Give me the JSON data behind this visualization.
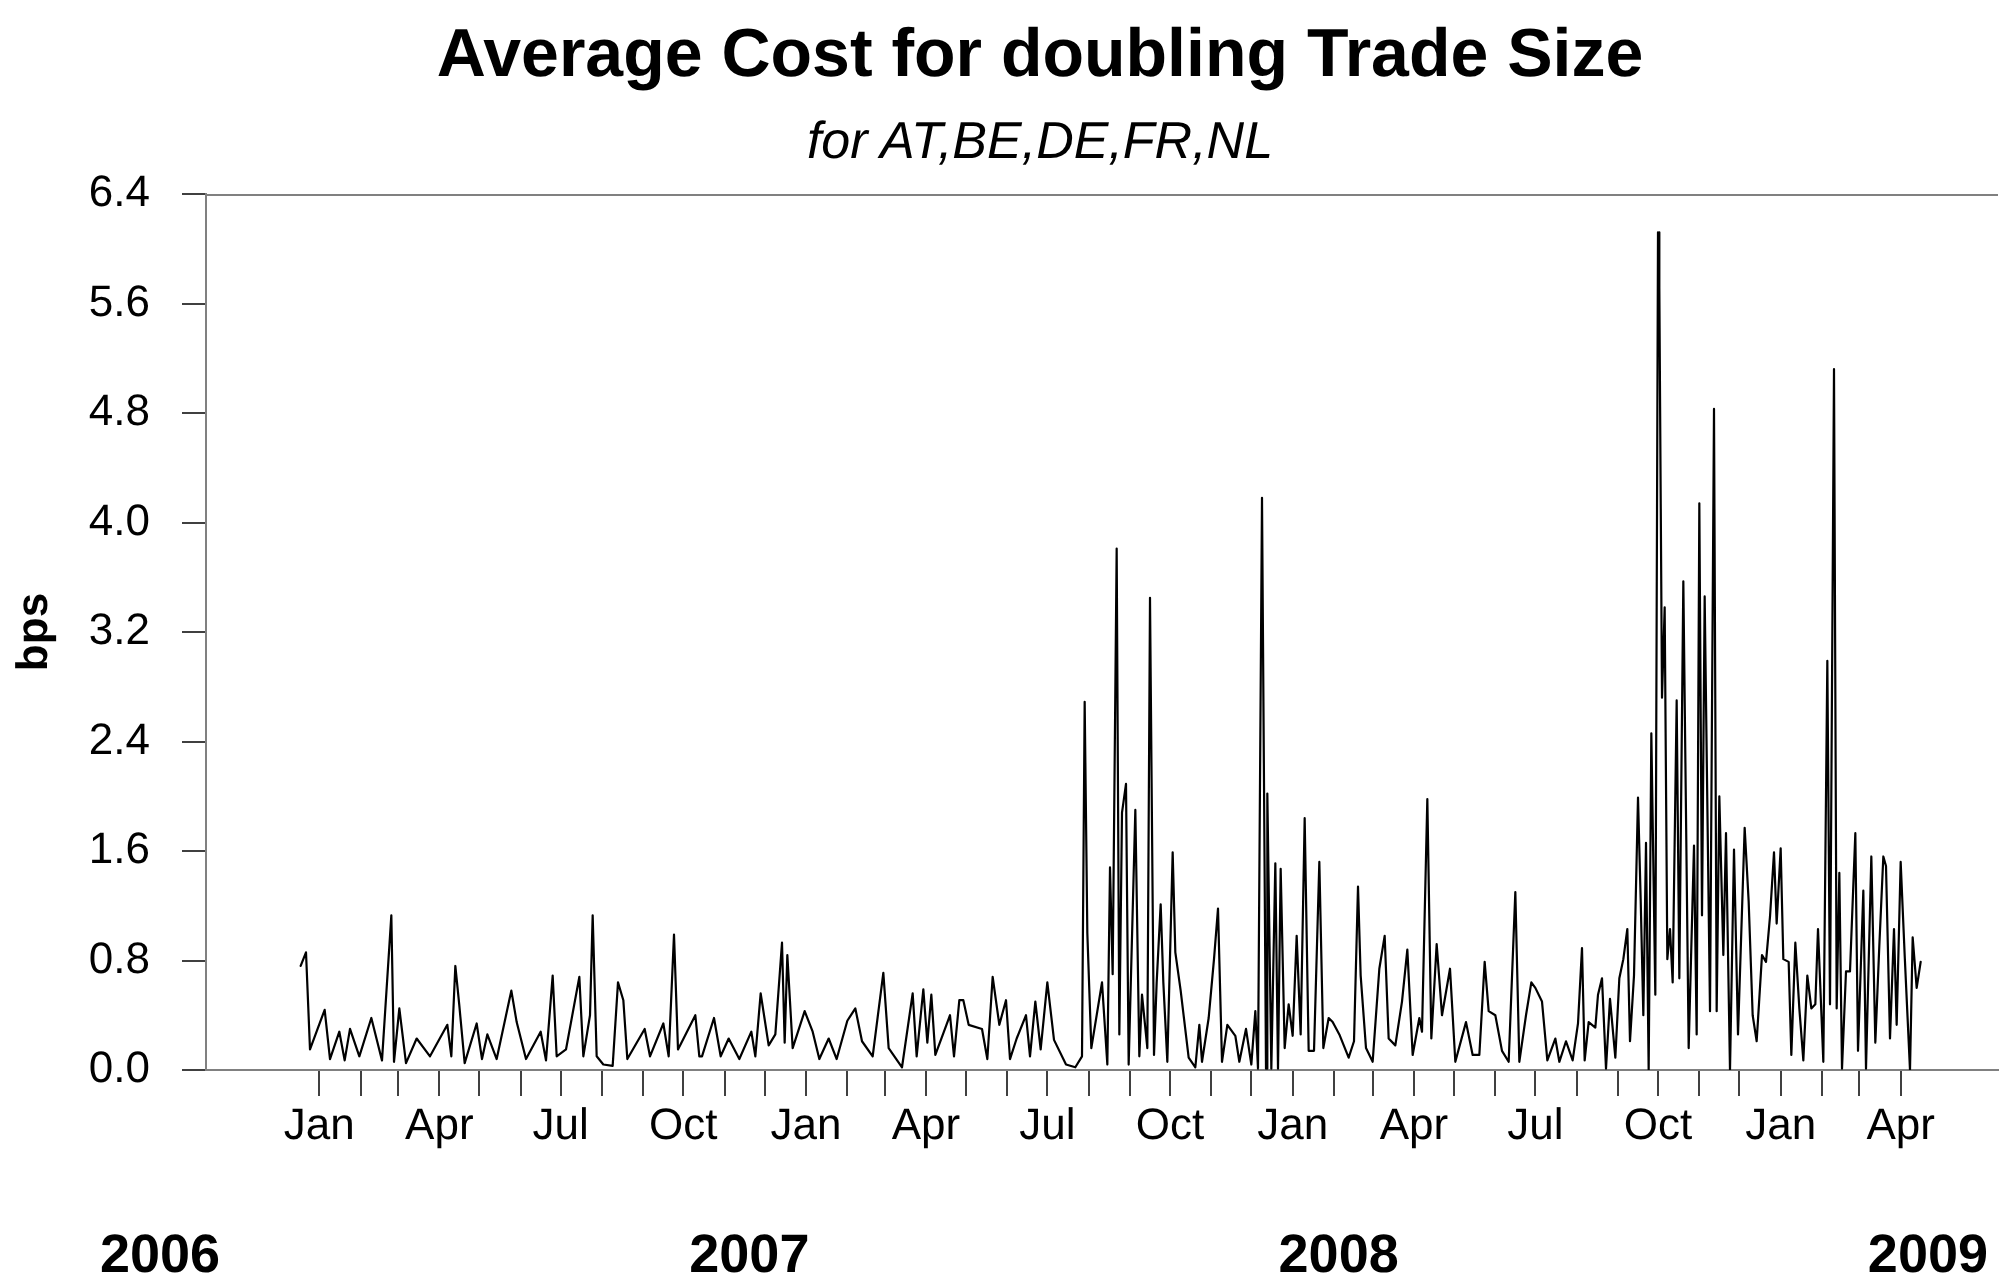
{
  "chart_data": {
    "type": "line",
    "title": "Average Cost for doubling Trade Size",
    "subtitle": "for AT,BE,DE,FR,NL",
    "ylabel": "bps",
    "annotations": [
      "2006",
      "2007",
      "2008",
      "2009"
    ],
    "color": "#000000",
    "x": [
      "2005-12-18",
      "2005-12-22",
      "2005-12-25",
      "2006-01-05",
      "2006-01-09",
      "2006-01-16",
      "2006-01-20",
      "2006-01-24",
      "2006-01-31",
      "2006-02-09",
      "2006-02-17",
      "2006-02-24",
      "2006-02-26",
      "2006-03-02",
      "2006-03-07",
      "2006-03-15",
      "2006-03-25",
      "2006-04-07",
      "2006-04-10",
      "2006-04-13",
      "2006-04-16",
      "2006-04-20",
      "2006-04-29",
      "2006-05-03",
      "2006-05-07",
      "2006-05-14",
      "2006-05-25",
      "2006-05-29",
      "2006-06-05",
      "2006-06-16",
      "2006-06-20",
      "2006-06-25",
      "2006-06-28",
      "2006-07-05",
      "2006-07-15",
      "2006-07-18",
      "2006-07-23",
      "2006-07-25",
      "2006-07-28",
      "2006-08-02",
      "2006-08-09",
      "2006-08-13",
      "2006-08-17",
      "2006-08-20",
      "2006-09-02",
      "2006-09-06",
      "2006-09-16",
      "2006-09-20",
      "2006-09-24",
      "2006-09-27",
      "2006-10-10",
      "2006-10-13",
      "2006-10-15",
      "2006-10-24",
      "2006-10-29",
      "2006-11-04",
      "2006-11-12",
      "2006-11-21",
      "2006-11-24",
      "2006-11-28",
      "2006-12-04",
      "2006-12-09",
      "2006-12-14",
      "2006-12-16",
      "2006-12-18",
      "2006-12-22",
      "2006-12-31",
      "2007-01-06",
      "2007-01-11",
      "2007-01-18",
      "2007-01-24",
      "2007-02-01",
      "2007-02-07",
      "2007-02-12",
      "2007-02-20",
      "2007-02-28",
      "2007-03-04",
      "2007-03-14",
      "2007-03-22",
      "2007-03-25",
      "2007-03-30",
      "2007-04-02",
      "2007-04-05",
      "2007-04-08",
      "2007-04-19",
      "2007-04-22",
      "2007-04-26",
      "2007-04-29",
      "2007-05-03",
      "2007-05-13",
      "2007-05-17",
      "2007-05-21",
      "2007-05-26",
      "2007-05-31",
      "2007-06-03",
      "2007-06-08",
      "2007-06-15",
      "2007-06-18",
      "2007-06-22",
      "2007-06-26",
      "2007-07-01",
      "2007-07-06",
      "2007-07-15",
      "2007-07-22",
      "2007-07-27",
      "2007-07-29",
      "2007-07-31",
      "2007-08-03",
      "2007-08-11",
      "2007-08-15",
      "2007-08-17",
      "2007-08-19",
      "2007-08-22",
      "2007-08-24",
      "2007-08-26",
      "2007-08-29",
      "2007-08-31",
      "2007-09-05",
      "2007-09-08",
      "2007-09-10",
      "2007-09-14",
      "2007-09-16",
      "2007-09-19",
      "2007-09-21",
      "2007-09-24",
      "2007-09-26",
      "2007-09-29",
      "2007-10-03",
      "2007-10-05",
      "2007-10-09",
      "2007-10-15",
      "2007-10-20",
      "2007-10-23",
      "2007-10-25",
      "2007-10-30",
      "2007-11-03",
      "2007-11-06",
      "2007-11-09",
      "2007-11-13",
      "2007-11-19",
      "2007-11-22",
      "2007-11-27",
      "2007-12-01",
      "2007-12-04",
      "2007-12-06",
      "2007-12-09",
      "2007-12-12",
      "2007-12-13",
      "2007-12-16",
      "2007-12-19",
      "2007-12-21",
      "2007-12-23",
      "2007-12-26",
      "2007-12-29",
      "2008-01-01",
      "2008-01-04",
      "2008-01-07",
      "2008-01-10",
      "2008-01-13",
      "2008-01-17",
      "2008-01-21",
      "2008-01-24",
      "2008-01-28",
      "2008-01-31",
      "2008-02-05",
      "2008-02-12",
      "2008-02-16",
      "2008-02-19",
      "2008-02-21",
      "2008-02-25",
      "2008-03-01",
      "2008-03-06",
      "2008-03-10",
      "2008-03-13",
      "2008-03-18",
      "2008-03-23",
      "2008-03-27",
      "2008-03-31",
      "2008-04-05",
      "2008-04-07",
      "2008-04-11",
      "2008-04-14",
      "2008-04-18",
      "2008-04-22",
      "2008-04-28",
      "2008-05-02",
      "2008-05-10",
      "2008-05-15",
      "2008-05-20",
      "2008-05-24",
      "2008-05-27",
      "2008-06-01",
      "2008-06-06",
      "2008-06-11",
      "2008-06-16",
      "2008-06-19",
      "2008-06-24",
      "2008-06-28",
      "2008-07-01",
      "2008-07-06",
      "2008-07-10",
      "2008-07-16",
      "2008-07-19",
      "2008-07-24",
      "2008-07-29",
      "2008-08-02",
      "2008-08-05",
      "2008-08-07",
      "2008-08-10",
      "2008-08-15",
      "2008-08-17",
      "2008-08-20",
      "2008-08-23",
      "2008-08-26",
      "2008-08-30",
      "2008-09-02",
      "2008-09-05",
      "2008-09-08",
      "2008-09-10",
      "2008-09-13",
      "2008-09-16",
      "2008-09-18",
      "2008-09-20",
      "2008-09-22",
      "2008-09-24",
      "2008-09-26",
      "2008-09-29",
      "2008-10-01",
      "2008-10-02",
      "2008-10-04",
      "2008-10-06",
      "2008-10-08",
      "2008-10-10",
      "2008-10-12",
      "2008-10-15",
      "2008-10-17",
      "2008-10-20",
      "2008-10-24",
      "2008-10-28",
      "2008-10-30",
      "2008-11-01",
      "2008-11-03",
      "2008-11-05",
      "2008-11-09",
      "2008-11-12",
      "2008-11-14",
      "2008-11-16",
      "2008-11-19",
      "2008-11-21",
      "2008-11-24",
      "2008-11-27",
      "2008-11-30",
      "2008-12-05",
      "2008-12-08",
      "2008-12-11",
      "2008-12-14",
      "2008-12-18",
      "2008-12-21",
      "2008-12-24",
      "2008-12-27",
      "2008-12-29",
      "2009-01-01",
      "2009-01-03",
      "2009-01-07",
      "2009-01-09",
      "2009-01-12",
      "2009-01-15",
      "2009-01-18",
      "2009-01-21",
      "2009-01-24",
      "2009-01-27",
      "2009-01-29",
      "2009-02-02",
      "2009-02-05",
      "2009-02-07",
      "2009-02-10",
      "2009-02-12",
      "2009-02-14",
      "2009-02-16",
      "2009-02-19",
      "2009-02-22",
      "2009-02-26",
      "2009-02-28",
      "2009-03-04",
      "2009-03-06",
      "2009-03-10",
      "2009-03-13",
      "2009-03-16",
      "2009-03-19",
      "2009-03-21",
      "2009-03-24",
      "2009-03-27",
      "2009-03-29",
      "2009-04-01",
      "2009-04-04",
      "2009-04-08",
      "2009-04-10",
      "2009-04-13",
      "2009-04-16"
    ],
    "values": [
      0.76,
      0.86,
      0.15,
      0.44,
      0.08,
      0.28,
      0.07,
      0.3,
      0.1,
      0.38,
      0.07,
      1.13,
      0.06,
      0.45,
      0.05,
      0.23,
      0.1,
      0.33,
      0.1,
      0.76,
      0.47,
      0.05,
      0.34,
      0.08,
      0.26,
      0.08,
      0.58,
      0.35,
      0.08,
      0.28,
      0.07,
      0.69,
      0.1,
      0.15,
      0.68,
      0.1,
      0.4,
      1.13,
      0.1,
      0.04,
      0.03,
      0.64,
      0.51,
      0.08,
      0.3,
      0.1,
      0.34,
      0.1,
      0.99,
      0.15,
      0.4,
      0.1,
      0.1,
      0.38,
      0.1,
      0.23,
      0.08,
      0.28,
      0.1,
      0.56,
      0.18,
      0.26,
      0.93,
      0.2,
      0.84,
      0.16,
      0.43,
      0.28,
      0.08,
      0.23,
      0.08,
      0.36,
      0.45,
      0.21,
      0.1,
      0.71,
      0.16,
      0.02,
      0.56,
      0.1,
      0.59,
      0.2,
      0.55,
      0.11,
      0.4,
      0.1,
      0.51,
      0.51,
      0.33,
      0.3,
      0.08,
      0.68,
      0.33,
      0.51,
      0.08,
      0.23,
      0.4,
      0.1,
      0.5,
      0.15,
      0.64,
      0.22,
      0.04,
      0.02,
      0.1,
      2.69,
      1.0,
      0.16,
      0.64,
      0.04,
      1.48,
      0.7,
      3.81,
      0.26,
      1.88,
      2.09,
      0.04,
      1.9,
      0.1,
      0.55,
      0.16,
      3.45,
      0.11,
      0.64,
      1.21,
      0.64,
      0.06,
      1.59,
      0.86,
      0.58,
      0.09,
      0.02,
      0.33,
      0.06,
      0.38,
      0.81,
      1.18,
      0.06,
      0.33,
      0.25,
      0.06,
      0.3,
      0.04,
      0.43,
      0.01,
      4.18,
      0.01,
      2.02,
      0.01,
      1.51,
      0.01,
      1.47,
      0.16,
      0.48,
      0.25,
      0.98,
      0.26,
      1.84,
      0.14,
      0.14,
      1.52,
      0.16,
      0.38,
      0.35,
      0.26,
      0.09,
      0.21,
      1.34,
      0.69,
      0.16,
      0.06,
      0.74,
      0.98,
      0.23,
      0.18,
      0.5,
      0.88,
      0.11,
      0.38,
      0.28,
      1.98,
      0.23,
      0.92,
      0.4,
      0.74,
      0.06,
      0.35,
      0.11,
      0.11,
      0.79,
      0.43,
      0.4,
      0.14,
      0.06,
      1.3,
      0.06,
      0.4,
      0.64,
      0.6,
      0.5,
      0.07,
      0.23,
      0.06,
      0.21,
      0.07,
      0.34,
      0.89,
      0.07,
      0.35,
      0.31,
      0.55,
      0.67,
      0.01,
      0.52,
      0.09,
      0.67,
      0.81,
      1.03,
      0.21,
      0.69,
      1.99,
      1.25,
      0.4,
      1.66,
      0.0,
      2.46,
      0.55,
      6.12,
      5.72,
      2.72,
      3.38,
      0.81,
      1.03,
      0.64,
      2.7,
      0.67,
      3.57,
      0.16,
      1.64,
      0.26,
      4.14,
      1.13,
      3.46,
      0.43,
      4.83,
      0.43,
      2.0,
      0.84,
      1.73,
      0.0,
      1.61,
      0.26,
      1.77,
      1.23,
      0.4,
      0.21,
      0.84,
      0.79,
      1.12,
      1.59,
      1.07,
      1.62,
      0.81,
      0.79,
      0.11,
      0.93,
      0.45,
      0.07,
      0.69,
      0.45,
      0.48,
      1.03,
      0.06,
      2.99,
      0.48,
      5.12,
      0.45,
      1.44,
      0.01,
      0.72,
      0.72,
      1.73,
      0.14,
      1.31,
      0.01,
      1.56,
      0.2,
      0.91,
      1.56,
      1.49,
      0.23,
      1.03,
      0.33,
      1.52,
      0.84,
      0.0,
      0.97,
      0.6,
      0.79
    ],
    "xlim": [
      "2005-10-08",
      "2009-06-13"
    ],
    "xticks": [
      {
        "value": "2006-01-01",
        "label": "Jan"
      },
      {
        "value": "2006-02-01",
        "label": null
      },
      {
        "value": "2006-03-01",
        "label": null
      },
      {
        "value": "2006-04-01",
        "label": "Apr"
      },
      {
        "value": "2006-05-01",
        "label": null
      },
      {
        "value": "2006-06-01",
        "label": null
      },
      {
        "value": "2006-07-01",
        "label": "Jul"
      },
      {
        "value": "2006-08-01",
        "label": null
      },
      {
        "value": "2006-09-01",
        "label": null
      },
      {
        "value": "2006-10-01",
        "label": "Oct"
      },
      {
        "value": "2006-11-01",
        "label": null
      },
      {
        "value": "2006-12-01",
        "label": null
      },
      {
        "value": "2007-01-01",
        "label": "Jan"
      },
      {
        "value": "2007-02-01",
        "label": null
      },
      {
        "value": "2007-03-01",
        "label": null
      },
      {
        "value": "2007-04-01",
        "label": "Apr"
      },
      {
        "value": "2007-05-01",
        "label": null
      },
      {
        "value": "2007-06-01",
        "label": null
      },
      {
        "value": "2007-07-01",
        "label": "Jul"
      },
      {
        "value": "2007-08-01",
        "label": null
      },
      {
        "value": "2007-09-01",
        "label": null
      },
      {
        "value": "2007-10-01",
        "label": "Oct"
      },
      {
        "value": "2007-11-01",
        "label": null
      },
      {
        "value": "2007-12-01",
        "label": null
      },
      {
        "value": "2008-01-01",
        "label": "Jan"
      },
      {
        "value": "2008-02-01",
        "label": null
      },
      {
        "value": "2008-03-01",
        "label": null
      },
      {
        "value": "2008-04-01",
        "label": "Apr"
      },
      {
        "value": "2008-05-01",
        "label": null
      },
      {
        "value": "2008-06-01",
        "label": null
      },
      {
        "value": "2008-07-01",
        "label": "Jul"
      },
      {
        "value": "2008-08-01",
        "label": null
      },
      {
        "value": "2008-09-01",
        "label": null
      },
      {
        "value": "2008-10-01",
        "label": "Oct"
      },
      {
        "value": "2008-11-01",
        "label": null
      },
      {
        "value": "2008-12-01",
        "label": null
      },
      {
        "value": "2009-01-01",
        "label": "Jan"
      },
      {
        "value": "2009-02-01",
        "label": null
      },
      {
        "value": "2009-03-01",
        "label": null
      },
      {
        "value": "2009-04-01",
        "label": "Apr"
      }
    ],
    "ylim": [
      0,
      6.4
    ],
    "yticks": [
      {
        "value": 0,
        "label": "0.0"
      },
      0.8,
      1.6,
      2.4,
      3.2,
      {
        "value": 4,
        "label": "4.0"
      },
      4.8,
      5.6,
      6.4
    ]
  }
}
